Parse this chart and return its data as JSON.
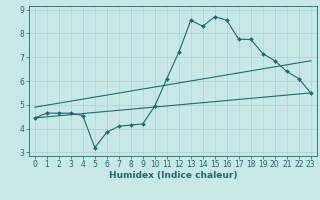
{
  "title": "",
  "xlabel": "Humidex (Indice chaleur)",
  "ylabel": "",
  "background_color": "#c8e8e8",
  "grid_color": "#afd0d0",
  "line_color": "#1a6b6b",
  "xlim": [
    -0.5,
    23.5
  ],
  "ylim": [
    2.85,
    9.15
  ],
  "xticks": [
    0,
    1,
    2,
    3,
    4,
    5,
    6,
    7,
    8,
    9,
    10,
    11,
    12,
    13,
    14,
    15,
    16,
    17,
    18,
    19,
    20,
    21,
    22,
    23
  ],
  "yticks": [
    3,
    4,
    5,
    6,
    7,
    8,
    9
  ],
  "line1_x": [
    0,
    1,
    2,
    3,
    4,
    5,
    6,
    7,
    8,
    9,
    10,
    11,
    12,
    13,
    14,
    15,
    16,
    17,
    18,
    19,
    20,
    21,
    22,
    23
  ],
  "line1_y": [
    4.45,
    4.65,
    4.65,
    4.65,
    4.55,
    3.2,
    3.85,
    4.1,
    4.15,
    4.2,
    4.95,
    6.1,
    7.2,
    8.55,
    8.3,
    8.7,
    8.55,
    7.75,
    7.75,
    7.15,
    6.85,
    6.4,
    6.1,
    5.5
  ],
  "line2_x": [
    0,
    23
  ],
  "line2_y": [
    4.45,
    5.5
  ],
  "line3_x": [
    0,
    23
  ],
  "line3_y": [
    4.9,
    6.85
  ],
  "figsize": [
    3.2,
    2.0
  ],
  "dpi": 100,
  "tick_fontsize": 5.5,
  "xlabel_fontsize": 6.5
}
